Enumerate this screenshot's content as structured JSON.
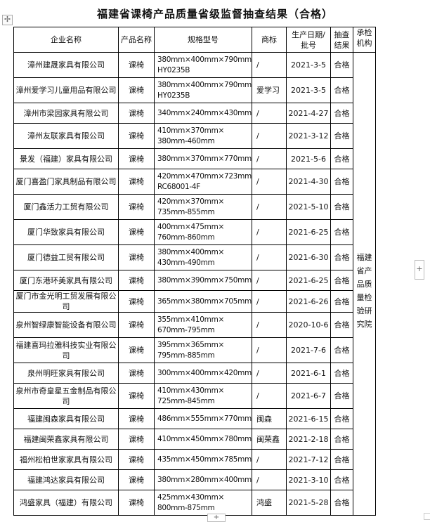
{
  "title": "福建省课椅产品质量省级监督抽查结果（合格）",
  "headers": [
    "企业名称",
    "产品名称",
    "规格型号",
    "商标",
    "生产日期/批号",
    "抽查结果",
    "承检机构"
  ],
  "header_lines": {
    "date": [
      "生产日期/",
      "批号"
    ],
    "result": [
      "抽查",
      "结果"
    ],
    "org": [
      "承检",
      "机构"
    ]
  },
  "inspection_org": "福建省产品质量检验研究院",
  "rows": [
    {
      "company": "漳州建晟家具有限公司",
      "product": "课椅",
      "spec": [
        "380mm×400mm×790mm",
        "HY0235B"
      ],
      "brand": "/",
      "date": "2021-3-5",
      "result": "合格"
    },
    {
      "company": "漳州爱学习儿童用品有限公司",
      "product": "课椅",
      "spec": [
        "380mm×400mm×790mm",
        "HY0235B"
      ],
      "brand": "爱学习",
      "date": "2021-3-5",
      "result": "合格"
    },
    {
      "company": "漳州市梁园家具有限公司",
      "product": "课椅",
      "spec": [
        "340mm×240mm×430mm"
      ],
      "brand": "/",
      "date": "2021-4-27",
      "result": "合格"
    },
    {
      "company": "漳州友联家具有限公司",
      "product": "课椅",
      "spec": [
        "410mm×370mm×",
        "380mm-460mm"
      ],
      "brand": "/",
      "date": "2021-3-12",
      "result": "合格"
    },
    {
      "company": "景发（福建）家具有限公司",
      "product": "课椅",
      "spec": [
        "380mm×370mm×770mm"
      ],
      "brand": "/",
      "date": "2021-5-6",
      "result": "合格"
    },
    {
      "company": "厦门喜盈门家具制品有限公司",
      "product": "课椅",
      "spec": [
        "420mm×470mm×723mm",
        "RC68001-4F"
      ],
      "brand": "/",
      "date": "2021-4-30",
      "result": "合格"
    },
    {
      "company": "厦门鑫活力工贸有限公司",
      "product": "课椅",
      "spec": [
        "420mm×370mm×",
        "735mm-855mm"
      ],
      "brand": "/",
      "date": "2021-5-10",
      "result": "合格"
    },
    {
      "company": "厦门华致家具有限公司",
      "product": "课椅",
      "spec": [
        "400mm×475mm×",
        "760mm-860mm"
      ],
      "brand": "/",
      "date": "2021-6-25",
      "result": "合格"
    },
    {
      "company": "厦门德益工贸有限公司",
      "product": "课椅",
      "spec": [
        "380mm×400mm×",
        "430mm-490mm"
      ],
      "brand": "/",
      "date": "2021-6-30",
      "result": "合格"
    },
    {
      "company": "厦门东港环美家具有限公司",
      "product": "课椅",
      "spec": [
        "380mm×390mm×750mm"
      ],
      "brand": "/",
      "date": "2021-6-25",
      "result": "合格"
    },
    {
      "company": "厦门市金光明工贸发展有限公司",
      "product": "课椅",
      "spec": [
        "365mm×380mm×705mm"
      ],
      "brand": "/",
      "date": "2021-6-26",
      "result": "合格"
    },
    {
      "company": "泉州智绿康智能设备有限公司",
      "product": "课椅",
      "spec": [
        "355mm×410mm×",
        "670mm-795mm"
      ],
      "brand": "/",
      "date": "2020-10-6",
      "result": "合格"
    },
    {
      "company": "福建喜玛拉雅科技实业有限公司",
      "product": "课椅",
      "spec": [
        "395mm×365mm×",
        "795mm-885mm"
      ],
      "brand": "/",
      "date": "2021-7-6",
      "result": "合格"
    },
    {
      "company": "泉州明旺家具有限公司",
      "product": "课椅",
      "spec": [
        "300mm×400mm×420mm"
      ],
      "brand": "/",
      "date": "2021-6-1",
      "result": "合格"
    },
    {
      "company": "泉州市奇皇星五金制品有限公司",
      "product": "课椅",
      "spec": [
        "410mm×430mm×",
        "725mm-845mm"
      ],
      "brand": "/",
      "date": "2021-6-7",
      "result": "合格"
    },
    {
      "company": "福建闽森家具有限公司",
      "product": "课椅",
      "spec": [
        "486mm×555mm×770mm"
      ],
      "brand": "闽森",
      "date": "2021-6-15",
      "result": "合格"
    },
    {
      "company": "福建闽荣鑫家具有限公司",
      "product": "课椅",
      "spec": [
        "410mm×450mm×780mm"
      ],
      "brand": "闽荣鑫",
      "date": "2021-2-18",
      "result": "合格"
    },
    {
      "company": "福州松柏世家家具有限公司",
      "product": "课椅",
      "spec": [
        "435mm×450mm×785mm"
      ],
      "brand": "/",
      "date": "2021-7-12",
      "result": "合格"
    },
    {
      "company": "福建鸿达家具有限公司",
      "product": "课椅",
      "spec": [
        "380mm×280mm×400mm"
      ],
      "brand": "/",
      "date": "2021-3-10",
      "result": "合格"
    },
    {
      "company": "鸿盛家具（福建）有限公司",
      "product": "课椅",
      "spec": [
        "425mm×430mm×",
        "800mm-875mm"
      ],
      "brand": "鸿盛",
      "date": "2021-5-28",
      "result": "合格"
    }
  ],
  "controls": {
    "move_icon": "move-icon",
    "add_col": "+",
    "add_row": "+"
  }
}
